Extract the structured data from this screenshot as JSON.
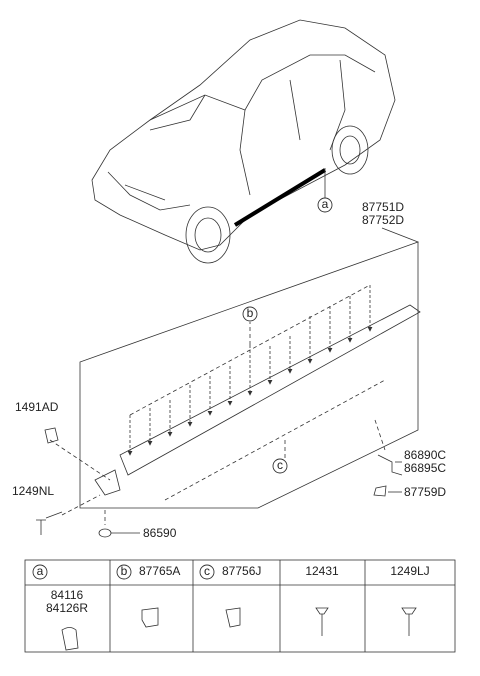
{
  "callouts": {
    "molding": [
      "87751D",
      "87752D"
    ],
    "clip_upper": "1491AD",
    "screw_left": "1249NL",
    "grommet": "86590",
    "bracket": [
      "86890C",
      "86895C"
    ],
    "clip_right": "87759D"
  },
  "refs": {
    "car": "a",
    "upper": "b",
    "lower": "c"
  },
  "table": {
    "headers": [
      {
        "ref": "a"
      },
      {
        "ref": "b",
        "part": "87765A"
      },
      {
        "ref": "c",
        "part": "87756J"
      },
      {
        "part": "12431"
      },
      {
        "part": "1249LJ"
      }
    ],
    "cells": [
      [
        "84116",
        "84126R"
      ]
    ]
  }
}
